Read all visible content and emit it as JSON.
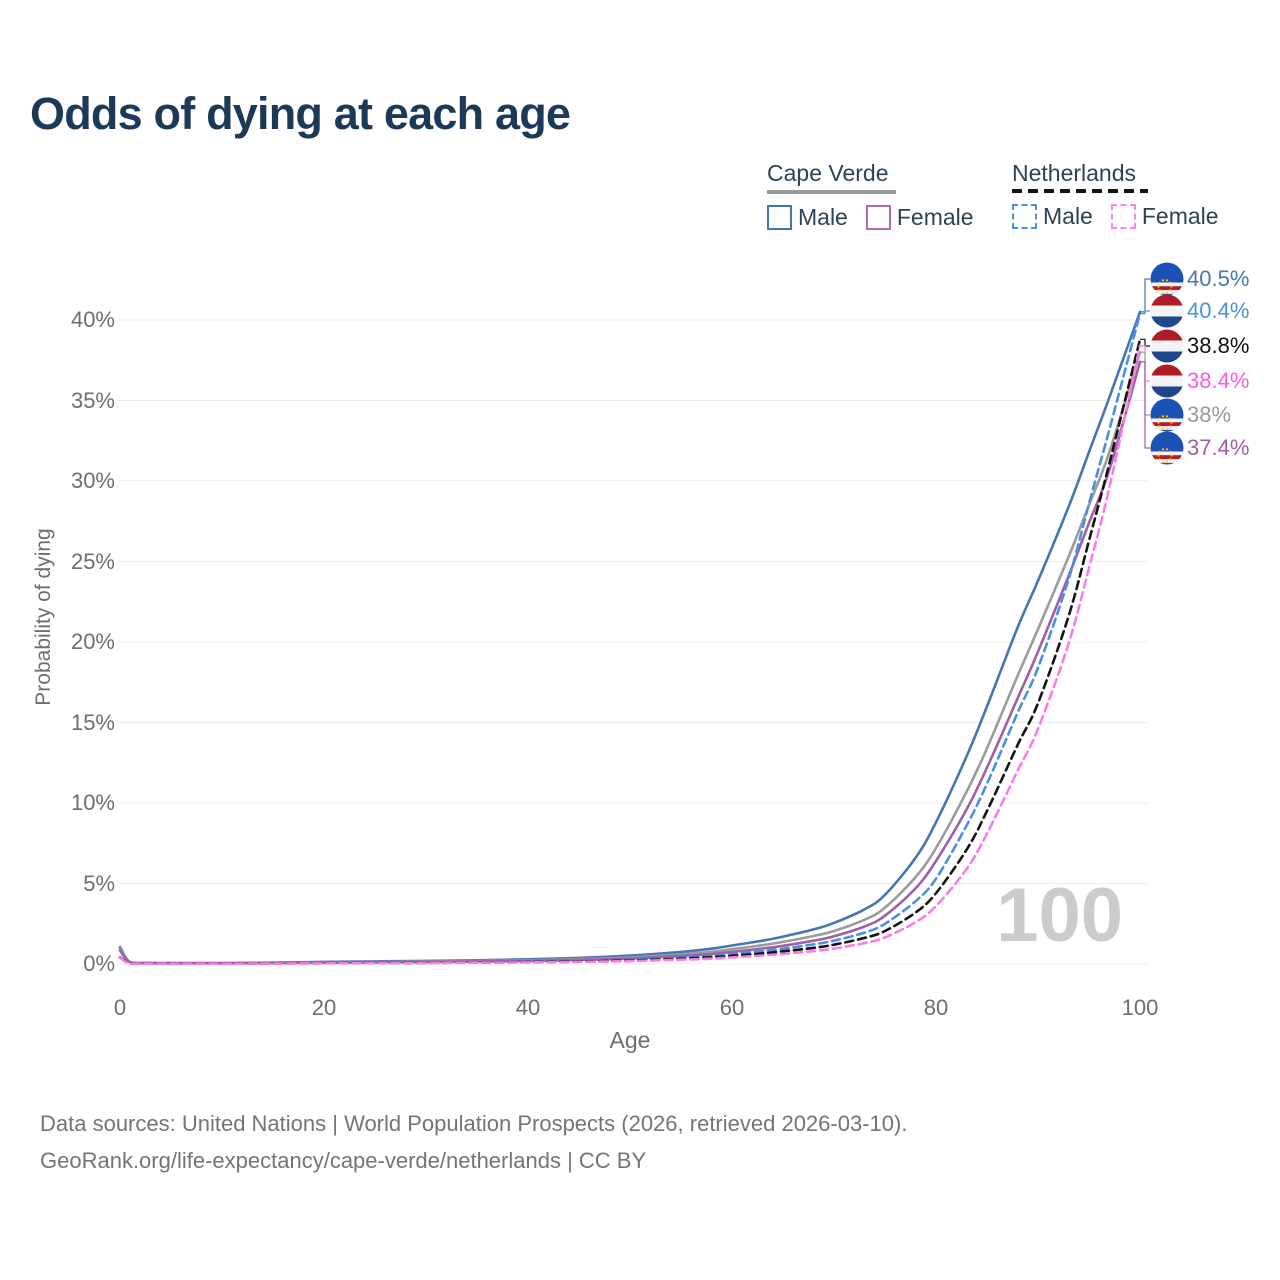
{
  "title": "Odds of dying at each age",
  "legend": {
    "groups": [
      {
        "country": "Cape Verde",
        "style": "solid",
        "items": [
          {
            "label": "Male",
            "color": "#4576b4"
          },
          {
            "label": "Female",
            "color": "#b36cb4"
          }
        ]
      },
      {
        "country": "Netherlands",
        "style": "dashed",
        "items": [
          {
            "label": "Male",
            "color": "#4a90e2"
          },
          {
            "label": "Female",
            "color": "#ff85ec"
          }
        ]
      }
    ]
  },
  "chart_data": {
    "type": "line",
    "title": "Odds of dying at each age",
    "xlabel": "Age",
    "ylabel": "Probability of dying",
    "xlim": [
      0,
      100
    ],
    "ylim_pct": [
      0,
      42
    ],
    "grid": "horizontal",
    "watermark": "100",
    "x_ticks": [
      {
        "value": 0,
        "label": "0"
      },
      {
        "value": 20,
        "label": "20"
      },
      {
        "value": 40,
        "label": "40"
      },
      {
        "value": 60,
        "label": "60"
      },
      {
        "value": 80,
        "label": "80"
      },
      {
        "value": 100,
        "label": "100"
      }
    ],
    "y_ticks": [
      {
        "value": 0,
        "label": "0%"
      },
      {
        "value": 5,
        "label": "5%"
      },
      {
        "value": 10,
        "label": "10%"
      },
      {
        "value": 15,
        "label": "15%"
      },
      {
        "value": 20,
        "label": "20%"
      },
      {
        "value": 25,
        "label": "25%"
      },
      {
        "value": 30,
        "label": "30%"
      },
      {
        "value": 35,
        "label": "35%"
      },
      {
        "value": 40,
        "label": "40%"
      }
    ],
    "series": [
      {
        "id": "cv_male",
        "name": "Cape Verde Male",
        "country": "cv",
        "style": "solid",
        "color": "#4576b4",
        "points": [
          [
            0,
            1.05
          ],
          [
            1,
            0.12
          ],
          [
            3,
            0.07
          ],
          [
            5,
            0.06
          ],
          [
            10,
            0.06
          ],
          [
            15,
            0.09
          ],
          [
            20,
            0.13
          ],
          [
            25,
            0.16
          ],
          [
            30,
            0.19
          ],
          [
            35,
            0.23
          ],
          [
            40,
            0.29
          ],
          [
            45,
            0.38
          ],
          [
            50,
            0.52
          ],
          [
            55,
            0.75
          ],
          [
            58,
            0.95
          ],
          [
            60,
            1.15
          ],
          [
            63,
            1.45
          ],
          [
            65,
            1.7
          ],
          [
            68,
            2.15
          ],
          [
            70,
            2.55
          ],
          [
            73,
            3.4
          ],
          [
            75,
            4.3
          ],
          [
            78,
            6.6
          ],
          [
            80,
            8.8
          ],
          [
            83,
            12.9
          ],
          [
            85,
            16
          ],
          [
            88,
            20.9
          ],
          [
            90,
            23.8
          ],
          [
            93,
            28.4
          ],
          [
            95,
            31.8
          ],
          [
            97,
            35.2
          ],
          [
            100,
            40.5
          ]
        ]
      },
      {
        "id": "cv_both",
        "name": "Cape Verde",
        "country": "cv",
        "style": "solid",
        "color": "#9b9b9b",
        "points": [
          [
            0,
            0.95
          ],
          [
            1,
            0.11
          ],
          [
            3,
            0.06
          ],
          [
            5,
            0.05
          ],
          [
            10,
            0.05
          ],
          [
            15,
            0.07
          ],
          [
            20,
            0.1
          ],
          [
            25,
            0.12
          ],
          [
            30,
            0.15
          ],
          [
            35,
            0.18
          ],
          [
            40,
            0.23
          ],
          [
            45,
            0.3
          ],
          [
            50,
            0.41
          ],
          [
            55,
            0.6
          ],
          [
            58,
            0.76
          ],
          [
            60,
            0.92
          ],
          [
            63,
            1.17
          ],
          [
            65,
            1.37
          ],
          [
            68,
            1.74
          ],
          [
            70,
            2.05
          ],
          [
            73,
            2.75
          ],
          [
            75,
            3.5
          ],
          [
            78,
            5.4
          ],
          [
            80,
            7.2
          ],
          [
            83,
            10.7
          ],
          [
            85,
            13.4
          ],
          [
            88,
            17.9
          ],
          [
            90,
            20.8
          ],
          [
            93,
            25.3
          ],
          [
            95,
            28.5
          ],
          [
            97,
            31.8
          ],
          [
            100,
            38
          ]
        ]
      },
      {
        "id": "cv_female",
        "name": "Cape Verde Female",
        "country": "cv",
        "style": "solid",
        "color": "#a05fa6",
        "points": [
          [
            0,
            0.85
          ],
          [
            1,
            0.1
          ],
          [
            3,
            0.05
          ],
          [
            5,
            0.045
          ],
          [
            10,
            0.045
          ],
          [
            15,
            0.06
          ],
          [
            20,
            0.08
          ],
          [
            25,
            0.1
          ],
          [
            30,
            0.12
          ],
          [
            35,
            0.15
          ],
          [
            40,
            0.19
          ],
          [
            45,
            0.25
          ],
          [
            50,
            0.34
          ],
          [
            55,
            0.5
          ],
          [
            58,
            0.62
          ],
          [
            60,
            0.75
          ],
          [
            63,
            0.96
          ],
          [
            65,
            1.13
          ],
          [
            68,
            1.45
          ],
          [
            70,
            1.72
          ],
          [
            73,
            2.33
          ],
          [
            75,
            3.0
          ],
          [
            78,
            4.7
          ],
          [
            80,
            6.4
          ],
          [
            83,
            9.6
          ],
          [
            85,
            12.2
          ],
          [
            88,
            16.5
          ],
          [
            90,
            19.4
          ],
          [
            93,
            24.1
          ],
          [
            95,
            27.4
          ],
          [
            97,
            30.7
          ],
          [
            100,
            37.4
          ]
        ]
      },
      {
        "id": "nl_male",
        "name": "Netherlands Male",
        "country": "nl",
        "style": "dashed",
        "color": "#4a90e2",
        "points": [
          [
            0,
            0.42
          ],
          [
            1,
            0.04
          ],
          [
            3,
            0.02
          ],
          [
            5,
            0.02
          ],
          [
            10,
            0.02
          ],
          [
            15,
            0.04
          ],
          [
            20,
            0.06
          ],
          [
            25,
            0.07
          ],
          [
            30,
            0.08
          ],
          [
            35,
            0.1
          ],
          [
            40,
            0.13
          ],
          [
            45,
            0.18
          ],
          [
            50,
            0.26
          ],
          [
            55,
            0.4
          ],
          [
            58,
            0.5
          ],
          [
            60,
            0.62
          ],
          [
            63,
            0.8
          ],
          [
            65,
            0.95
          ],
          [
            68,
            1.22
          ],
          [
            70,
            1.45
          ],
          [
            73,
            1.95
          ],
          [
            75,
            2.5
          ],
          [
            78,
            3.9
          ],
          [
            80,
            5.3
          ],
          [
            83,
            8.6
          ],
          [
            85,
            11.2
          ],
          [
            88,
            15.6
          ],
          [
            90,
            18.4
          ],
          [
            93,
            23.9
          ],
          [
            95,
            28.6
          ],
          [
            97,
            33.2
          ],
          [
            100,
            40.4
          ]
        ]
      },
      {
        "id": "nl_both",
        "name": "Netherlands",
        "country": "nl",
        "style": "dashed",
        "color": "#141414",
        "points": [
          [
            0,
            0.4
          ],
          [
            1,
            0.04
          ],
          [
            3,
            0.02
          ],
          [
            5,
            0.02
          ],
          [
            10,
            0.02
          ],
          [
            15,
            0.03
          ],
          [
            20,
            0.05
          ],
          [
            25,
            0.06
          ],
          [
            30,
            0.07
          ],
          [
            35,
            0.09
          ],
          [
            40,
            0.12
          ],
          [
            45,
            0.16
          ],
          [
            50,
            0.22
          ],
          [
            55,
            0.33
          ],
          [
            58,
            0.42
          ],
          [
            60,
            0.51
          ],
          [
            63,
            0.66
          ],
          [
            65,
            0.79
          ],
          [
            68,
            1.0
          ],
          [
            70,
            1.2
          ],
          [
            73,
            1.62
          ],
          [
            75,
            2.05
          ],
          [
            78,
            3.2
          ],
          [
            80,
            4.4
          ],
          [
            83,
            7.1
          ],
          [
            85,
            9.5
          ],
          [
            88,
            13.6
          ],
          [
            90,
            16.2
          ],
          [
            93,
            21.6
          ],
          [
            95,
            26.3
          ],
          [
            97,
            31.1
          ],
          [
            100,
            38.8
          ]
        ]
      },
      {
        "id": "nl_female",
        "name": "Netherlands Female",
        "country": "nl",
        "style": "dashed",
        "color": "#fb7ce8",
        "points": [
          [
            0,
            0.38
          ],
          [
            1,
            0.03
          ],
          [
            3,
            0.015
          ],
          [
            5,
            0.015
          ],
          [
            10,
            0.015
          ],
          [
            15,
            0.025
          ],
          [
            20,
            0.04
          ],
          [
            25,
            0.05
          ],
          [
            30,
            0.06
          ],
          [
            35,
            0.08
          ],
          [
            40,
            0.1
          ],
          [
            45,
            0.13
          ],
          [
            50,
            0.18
          ],
          [
            55,
            0.27
          ],
          [
            58,
            0.33
          ],
          [
            60,
            0.41
          ],
          [
            63,
            0.53
          ],
          [
            65,
            0.63
          ],
          [
            68,
            0.8
          ],
          [
            70,
            0.96
          ],
          [
            73,
            1.3
          ],
          [
            75,
            1.65
          ],
          [
            78,
            2.6
          ],
          [
            80,
            3.6
          ],
          [
            83,
            5.9
          ],
          [
            85,
            8.1
          ],
          [
            88,
            12.0
          ],
          [
            90,
            14.6
          ],
          [
            93,
            19.9
          ],
          [
            95,
            24.6
          ],
          [
            97,
            29.6
          ],
          [
            100,
            38.4
          ]
        ]
      }
    ],
    "end_labels": [
      {
        "series_id": "cv_male",
        "text": "40.5%",
        "flag": "cv",
        "color": "#4576b4"
      },
      {
        "series_id": "nl_male",
        "text": "40.4%",
        "flag": "nl",
        "color": "#4a90e2"
      },
      {
        "series_id": "nl_both",
        "text": "38.8%",
        "flag": "nl",
        "color": "#111111"
      },
      {
        "series_id": "nl_female",
        "text": "38.4%",
        "flag": "nl",
        "color": "#f95ce3"
      },
      {
        "series_id": "cv_both",
        "text": "38%",
        "flag": "cv",
        "color": "#999999"
      },
      {
        "series_id": "cv_female",
        "text": "37.4%",
        "flag": "cv",
        "color": "#9c5fa4"
      }
    ]
  },
  "footer": {
    "line1": "Data sources: United Nations | World Population Prospects (2026, retrieved 2026-03-10).",
    "line2": "GeoRank.org/life-expectancy/cape-verde/netherlands | CC BY"
  }
}
